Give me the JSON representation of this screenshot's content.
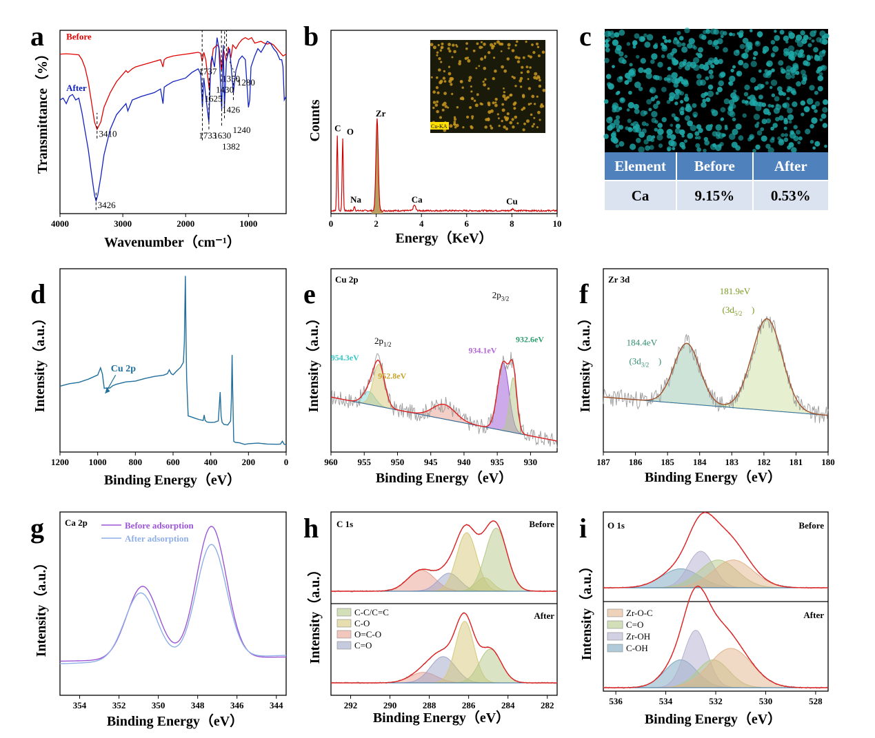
{
  "colors": {
    "before": "#e00000",
    "after": "#1020c0",
    "eds": "#cc0000",
    "eds_fill": "#b8a060",
    "survey": "#1f6e9b",
    "fit": "#e02020",
    "raw": "#9a9a9a",
    "bg": "#2e6b9e",
    "inset_bg": "#1a1a0a",
    "inset_dot": "#c8961e",
    "ca_bg": "#000000",
    "ca_dot": "#1fa8a8",
    "table_head": "#4f81bd",
    "table_cell": "#dbe2f0",
    "g_before": "#9b55d6",
    "g_after": "#8eaee8",
    "cc": "#b5c98a",
    "co": "#d6c878",
    "oco": "#e8a090",
    "c_o": "#a0a6c8",
    "zroc": "#e2b48c",
    "o_co": "#b5c98a",
    "zroh": "#b4b0d0",
    "coh": "#7aa8c0"
  },
  "chart_data": [
    {
      "panel": "a",
      "type": "line",
      "xlabel": "Wavenumber（cm⁻¹）",
      "ylabel": "Transmittance（%）",
      "xlim": [
        4000,
        400
      ],
      "xticks": [
        4000,
        3000,
        2000,
        1000
      ],
      "series": [
        {
          "name": "Before",
          "x": [
            4000,
            3900,
            3800,
            3700,
            3650,
            3600,
            3550,
            3500,
            3450,
            3410,
            3350,
            3300,
            3200,
            3100,
            3000,
            2950,
            2920,
            2850,
            2800,
            2700,
            2600,
            2500,
            2400,
            2360,
            2340,
            2300,
            2200,
            2100,
            2000,
            1900,
            1800,
            1760,
            1737,
            1710,
            1680,
            1625,
            1590,
            1560,
            1500,
            1470,
            1430,
            1400,
            1350,
            1320,
            1280,
            1250,
            1200,
            1150,
            1100,
            1050,
            1000,
            950,
            900,
            850,
            800,
            750,
            700,
            650,
            600,
            550,
            500,
            450,
            400
          ],
          "y": [
            0.87,
            0.872,
            0.87,
            0.866,
            0.84,
            0.795,
            0.72,
            0.61,
            0.5,
            0.46,
            0.5,
            0.58,
            0.66,
            0.72,
            0.76,
            0.78,
            0.77,
            0.79,
            0.8,
            0.81,
            0.82,
            0.83,
            0.84,
            0.8,
            0.84,
            0.85,
            0.86,
            0.865,
            0.87,
            0.875,
            0.88,
            0.875,
            0.83,
            0.88,
            0.84,
            0.68,
            0.82,
            0.9,
            0.92,
            0.91,
            0.78,
            0.9,
            0.83,
            0.91,
            0.85,
            0.92,
            0.9,
            0.93,
            0.95,
            0.96,
            0.95,
            0.96,
            0.93,
            0.935,
            0.94,
            0.93,
            0.925,
            0.93,
            0.92,
            0.9,
            0.88,
            0.86,
            0.87
          ]
        },
        {
          "name": "After",
          "x": [
            4000,
            3950,
            3900,
            3850,
            3800,
            3750,
            3700,
            3650,
            3600,
            3550,
            3500,
            3450,
            3426,
            3400,
            3350,
            3300,
            3200,
            3100,
            3000,
            2950,
            2920,
            2850,
            2700,
            2500,
            2400,
            2360,
            2340,
            2300,
            2200,
            2000,
            1900,
            1800,
            1760,
            1733,
            1710,
            1680,
            1630,
            1600,
            1580,
            1540,
            1500,
            1470,
            1426,
            1400,
            1382,
            1350,
            1300,
            1240,
            1200,
            1150,
            1100,
            1050,
            1000,
            980,
            960,
            900,
            850,
            800,
            750,
            700,
            650,
            600,
            550,
            500,
            470,
            450,
            430,
            400
          ],
          "y": [
            0.62,
            0.63,
            0.6,
            0.64,
            0.65,
            0.62,
            0.63,
            0.55,
            0.45,
            0.35,
            0.22,
            0.1,
            0.07,
            0.1,
            0.2,
            0.32,
            0.46,
            0.54,
            0.58,
            0.6,
            0.56,
            0.62,
            0.64,
            0.66,
            0.68,
            0.6,
            0.69,
            0.7,
            0.72,
            0.74,
            0.77,
            0.79,
            0.76,
            0.58,
            0.74,
            0.64,
            0.5,
            0.82,
            0.86,
            0.8,
            0.96,
            0.9,
            0.57,
            0.92,
            0.58,
            0.84,
            0.9,
            0.66,
            0.78,
            0.84,
            0.86,
            0.84,
            0.58,
            0.62,
            0.8,
            0.86,
            0.9,
            0.88,
            0.91,
            0.94,
            0.93,
            0.9,
            0.88,
            0.84,
            0.84,
            0.8,
            0.62,
            0.64
          ]
        }
      ],
      "labels": [
        {
          "text": "Before",
          "x": 3900,
          "y": 0.95
        },
        {
          "text": "After",
          "x": 3900,
          "y": 0.67
        },
        {
          "text": "1737",
          "x": 1790,
          "y": 0.76
        },
        {
          "text": "1625",
          "x": 1700,
          "y": 0.61
        },
        {
          "text": "1430",
          "x": 1520,
          "y": 0.66
        },
        {
          "text": "1350",
          "x": 1420,
          "y": 0.72
        },
        {
          "text": "1280",
          "x": 1180,
          "y": 0.7
        },
        {
          "text": "3410",
          "x": 3380,
          "y": 0.42
        },
        {
          "text": "1426",
          "x": 1420,
          "y": 0.55
        },
        {
          "text": "1733",
          "x": 1790,
          "y": 0.41
        },
        {
          "text": "1630",
          "x": 1560,
          "y": 0.41
        },
        {
          "text": "1240",
          "x": 1250,
          "y": 0.44
        },
        {
          "text": "1382",
          "x": 1420,
          "y": 0.35
        },
        {
          "text": "3426",
          "x": 3400,
          "y": 0.03
        }
      ]
    },
    {
      "panel": "b",
      "type": "area",
      "xlabel": "Energy（KeV）",
      "ylabel": "Counts",
      "xlim": [
        0,
        10
      ],
      "xticks": [
        0,
        2,
        4,
        6,
        8,
        10
      ],
      "peaks": [
        {
          "label": "C",
          "energy": 0.28,
          "height": 0.41
        },
        {
          "label": "O",
          "energy": 0.52,
          "height": 0.39
        },
        {
          "label": "Na",
          "energy": 1.04,
          "height": 0.025
        },
        {
          "label": "Zr",
          "energy": 2.04,
          "height": 0.5
        },
        {
          "label": "Ca",
          "energy": 3.69,
          "height": 0.03
        },
        {
          "label": "Cu",
          "energy": 8.04,
          "height": 0.01
        }
      ],
      "inset_label": "Cu-KA"
    },
    {
      "panel": "c",
      "type": "table",
      "headers": [
        "Element",
        "Before",
        "After"
      ],
      "rows": [
        [
          "Ca",
          "9.15%",
          "0.53%"
        ]
      ]
    },
    {
      "panel": "d",
      "type": "line",
      "xlabel": "Binding Energy（eV）",
      "ylabel": "Intensity（a.u.）",
      "xlim": [
        1200,
        0
      ],
      "xticks": [
        1200,
        1000,
        800,
        600,
        400,
        200,
        0
      ],
      "annotation": "Cu 2p",
      "series": [
        {
          "x": [
            1200,
            1150,
            1100,
            1050,
            1000,
            985,
            975,
            965,
            955,
            945,
            935,
            920,
            900,
            850,
            800,
            750,
            700,
            650,
            630,
            620,
            610,
            600,
            580,
            560,
            545,
            540,
            535,
            531,
            528,
            520,
            500,
            480,
            460,
            440,
            435,
            430,
            420,
            400,
            380,
            360,
            350,
            345,
            340,
            330,
            310,
            295,
            290,
            287,
            284,
            281,
            278,
            270,
            250,
            220,
            200,
            150,
            100,
            50,
            30,
            20,
            10,
            0
          ],
          "y": [
            0.36,
            0.37,
            0.38,
            0.395,
            0.42,
            0.46,
            0.43,
            0.35,
            0.345,
            0.35,
            0.352,
            0.36,
            0.37,
            0.38,
            0.39,
            0.4,
            0.41,
            0.42,
            0.43,
            0.45,
            0.43,
            0.42,
            0.44,
            0.46,
            0.49,
            0.6,
            0.96,
            0.6,
            0.4,
            0.2,
            0.19,
            0.18,
            0.175,
            0.17,
            0.2,
            0.17,
            0.16,
            0.16,
            0.16,
            0.17,
            0.33,
            0.2,
            0.16,
            0.15,
            0.15,
            0.17,
            0.3,
            0.53,
            0.35,
            0.2,
            0.06,
            0.05,
            0.05,
            0.045,
            0.045,
            0.045,
            0.045,
            0.045,
            0.045,
            0.06,
            0.045,
            0.045
          ]
        }
      ]
    },
    {
      "panel": "e",
      "type": "line",
      "title": "Cu 2p",
      "xlabel": "Binding Energy（eV）",
      "ylabel": "Intensity（a.u.）",
      "xlim": [
        960,
        926
      ],
      "xticks": [
        960,
        955,
        950,
        945,
        940,
        935,
        930
      ],
      "baseline": {
        "x": [
          960,
          926
        ],
        "y": [
          0.3,
          0.06
        ]
      },
      "components": [
        {
          "center": 954.3,
          "fwhm": 2.2,
          "height": 0.07,
          "color_key": "teal"
        },
        {
          "center": 952.8,
          "fwhm": 2.0,
          "height": 0.23,
          "color_key": "co"
        },
        {
          "center": 943.0,
          "fwhm": 4.0,
          "height": 0.08,
          "color_key": "oco"
        },
        {
          "center": 934.1,
          "fwhm": 2.0,
          "height": 0.37,
          "color_key": "g_before"
        },
        {
          "center": 932.6,
          "fwhm": 1.3,
          "height": 0.3,
          "color_key": "cc"
        }
      ],
      "labels": [
        {
          "text": "2p1/2",
          "x": 952.2,
          "y": 0.59
        },
        {
          "text": "954.3eV",
          "x": 957.9,
          "y": 0.5
        },
        {
          "text": "952.8eV",
          "x": 950.8,
          "y": 0.4
        },
        {
          "text": "934.1eV",
          "x": 937.2,
          "y": 0.54
        },
        {
          "text": "2p3/2",
          "x": 934.5,
          "y": 0.84
        },
        {
          "text": "932.6eV",
          "x": 930.1,
          "y": 0.6
        }
      ]
    },
    {
      "panel": "f",
      "type": "line",
      "title": "Zr 3d",
      "xlabel": "Binding Energy（eV）",
      "ylabel": "Intensity（a.u.）",
      "xlim": [
        187,
        180
      ],
      "xticks": [
        187,
        186,
        185,
        184,
        183,
        182,
        181,
        180
      ],
      "baseline": {
        "x": [
          187,
          180
        ],
        "y": [
          0.3,
          0.2
        ]
      },
      "components": [
        {
          "center": 184.4,
          "fwhm": 0.95,
          "height": 0.33,
          "color_key": "teal_dark"
        },
        {
          "center": 181.9,
          "fwhm": 1.1,
          "height": 0.5,
          "color_key": "olive"
        }
      ],
      "labels": [
        {
          "text": "184.4eV",
          "x": 185.8,
          "y": 0.58
        },
        {
          "text": "(3d3/2)",
          "x": 185.8,
          "y": 0.48
        },
        {
          "text": "181.9eV",
          "x": 182.9,
          "y": 0.86
        },
        {
          "text": "(3d5/2)",
          "x": 182.9,
          "y": 0.76
        }
      ]
    },
    {
      "panel": "g",
      "type": "line",
      "title": "Ca 2p",
      "xlabel": "Binding Energy（eV）",
      "ylabel": "Intensity（a.u.）",
      "xlim": [
        355,
        343.5
      ],
      "xticks": [
        354,
        352,
        350,
        348,
        346,
        344
      ],
      "series": [
        {
          "name": "Before adsorption",
          "peaks": [
            {
              "center": 350.8,
              "fwhm": 1.9,
              "height": 0.4
            },
            {
              "center": 347.3,
              "fwhm": 1.8,
              "height": 0.72
            }
          ],
          "base": 0.2
        },
        {
          "name": "After adsorption",
          "peaks": [
            {
              "center": 350.9,
              "fwhm": 1.9,
              "height": 0.37
            },
            {
              "center": 347.3,
              "fwhm": 1.8,
              "height": 0.62
            }
          ],
          "base": 0.2
        }
      ]
    },
    {
      "panel": "h",
      "type": "line",
      "title": "C 1s",
      "xlabel": "Binding Energy（eV）",
      "ylabel": "Intensity（a.u.）",
      "xlim": [
        293,
        281.5
      ],
      "xticks": [
        292,
        290,
        288,
        286,
        284,
        282
      ],
      "legend": [
        "C-C/C=C",
        "C-O",
        "O=C-O",
        "C=O"
      ],
      "panels": [
        {
          "label": "Before",
          "components": [
            {
              "center": 288.4,
              "fwhm": 1.6,
              "height": 0.28,
              "color_key": "oco"
            },
            {
              "center": 287.0,
              "fwhm": 1.3,
              "height": 0.24,
              "color_key": "c_o"
            },
            {
              "center": 286.1,
              "fwhm": 1.2,
              "height": 0.78,
              "color_key": "co"
            },
            {
              "center": 285.2,
              "fwhm": 1.0,
              "height": 0.18,
              "color_key": "co"
            },
            {
              "center": 284.6,
              "fwhm": 1.3,
              "height": 0.84,
              "color_key": "cc"
            }
          ]
        },
        {
          "label": "After",
          "components": [
            {
              "center": 288.3,
              "fwhm": 1.6,
              "height": 0.14,
              "color_key": "oco"
            },
            {
              "center": 287.3,
              "fwhm": 1.5,
              "height": 0.35,
              "color_key": "c_o"
            },
            {
              "center": 286.2,
              "fwhm": 1.1,
              "height": 0.82,
              "color_key": "co"
            },
            {
              "center": 284.9,
              "fwhm": 1.3,
              "height": 0.45,
              "color_key": "cc"
            }
          ]
        }
      ]
    },
    {
      "panel": "i",
      "type": "line",
      "title": "O 1s",
      "xlabel": "Binding Energy（eV）",
      "ylabel": "Intensity（a.u.）",
      "xlim": [
        536.5,
        527.5
      ],
      "xticks": [
        536,
        534,
        532,
        530,
        528
      ],
      "legend": [
        "Zr-O-C",
        "C=O",
        "Zr-OH",
        "C-OH"
      ],
      "panels": [
        {
          "label": "Before",
          "components": [
            {
              "center": 533.4,
              "fwhm": 1.8,
              "height": 0.26,
              "color_key": "coh"
            },
            {
              "center": 532.6,
              "fwhm": 1.2,
              "height": 0.5,
              "color_key": "zroh"
            },
            {
              "center": 531.9,
              "fwhm": 1.8,
              "height": 0.38,
              "color_key": "o_co"
            },
            {
              "center": 531.3,
              "fwhm": 1.9,
              "height": 0.38,
              "color_key": "zroc"
            }
          ]
        },
        {
          "label": "After",
          "components": [
            {
              "center": 533.4,
              "fwhm": 1.5,
              "height": 0.34,
              "color_key": "coh"
            },
            {
              "center": 532.8,
              "fwhm": 1.1,
              "height": 0.7,
              "color_key": "zroh"
            },
            {
              "center": 532.1,
              "fwhm": 1.5,
              "height": 0.34,
              "color_key": "o_co"
            },
            {
              "center": 531.4,
              "fwhm": 2.0,
              "height": 0.48,
              "color_key": "zroc"
            }
          ]
        }
      ]
    }
  ],
  "letters": [
    "a",
    "b",
    "c",
    "d",
    "e",
    "f",
    "g",
    "h",
    "i"
  ]
}
